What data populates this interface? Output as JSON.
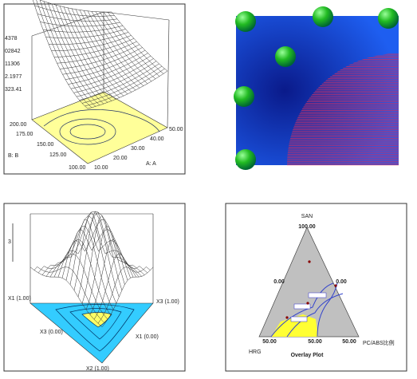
{
  "surface_plot": {
    "z_labels": [
      "4378",
      "02842",
      "11306",
      "2.1977",
      "323.41"
    ],
    "b_labels": [
      "200.00",
      "175.00",
      "150.00",
      "125.00",
      "100.00"
    ],
    "b_title": "B: B",
    "a_labels": [
      "10.00",
      "20.00",
      "30.00",
      "40.00",
      "50.00"
    ],
    "a_title": "A: A"
  },
  "mixture_plot": {
    "z_label": "3",
    "x1_high": "X1 (1.00)",
    "x3_high": "X3 (1.00)",
    "x3_low": "X3 (0.00)",
    "x1_low": "X1 (0.00)",
    "x2_high": "X2 (1.00)"
  },
  "ternary_plot": {
    "top_vertex": "SAN",
    "top_value": "100.00",
    "left_mid": "0.00",
    "right_mid": "0.00",
    "bottom_left_value": "50.00",
    "bottom_mid_value": "50.00",
    "bottom_right_value": "50.00",
    "left_vertex": "HRG",
    "title": "Overlay Plot",
    "right_vertex": "PC/ABS比例"
  }
}
